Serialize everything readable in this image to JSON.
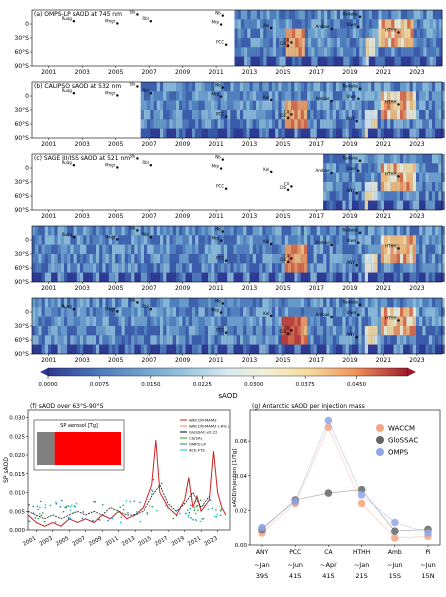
{
  "colors": {
    "colormap": [
      "#2d3a93",
      "#3b5cab",
      "#4f7dbd",
      "#6a9dcb",
      "#8cbbd9",
      "#b3d6e6",
      "#d8eaf1",
      "#f2f0d6",
      "#f8dca0",
      "#f7bd77",
      "#f1965c",
      "#e0673f",
      "#c73a30",
      "#a01a2d"
    ],
    "land": "#ffffff",
    "waccm": "#f4a582",
    "glossac": "#666666",
    "omps": "#8fa6e6",
    "panel_f_waccm": "#cc2222",
    "panel_f_sp_bar": "#ff0000",
    "panel_f_gray_bar": "#808080"
  },
  "chart_data": [
    {
      "id": "a",
      "type": "heatmap",
      "title": "(a) OMPS-LP sAOD at 745 nm",
      "x_ticks": [
        "2001",
        "2003",
        "2005",
        "2007",
        "2009",
        "2011",
        "2013",
        "2015",
        "2017",
        "2019",
        "2021",
        "2023"
      ],
      "y_ticks": [
        "0",
        "30°S",
        "60°S",
        "90°S"
      ],
      "data_start_year": 2012.1,
      "events": [
        "Ruag",
        "Mngr",
        "Slk",
        "Rbl",
        "Nb",
        "Mrp",
        "PCC",
        "Clb",
        "Kel",
        "Ambae",
        "Ulwn",
        "HTHH",
        "Raikoke",
        "CA"
      ]
    },
    {
      "id": "b",
      "type": "heatmap",
      "title": "(b) CALIPSO sAOD at 532 nm",
      "x_ticks": [
        "2001",
        "2003",
        "2005",
        "2007",
        "2009",
        "2011",
        "2013",
        "2015",
        "2017",
        "2019",
        "2021",
        "2023"
      ],
      "y_ticks": [
        "0",
        "30°S",
        "60°S",
        "90°S"
      ],
      "data_start_year": 2006.5,
      "events": [
        "Ruag",
        "Mngr",
        "Slk",
        "Rbl",
        "Nb",
        "Mrp",
        "PCC",
        "Clb",
        "Kel",
        "Ambae",
        "Ulwn",
        "HTHH",
        "Raikoke",
        "CA",
        "ANY"
      ]
    },
    {
      "id": "c",
      "type": "heatmap",
      "title": "(c) SAGE III/ISS sAOD at 521 nm",
      "x_ticks": [
        "2001",
        "2003",
        "2005",
        "2007",
        "2009",
        "2011",
        "2013",
        "2015",
        "2017",
        "2019",
        "2021",
        "2023"
      ],
      "y_ticks": [
        "0",
        "30°S",
        "60°S",
        "90°S"
      ],
      "data_start_year": 2017.4,
      "events": [
        "Ruag",
        "Mngr",
        "Slk",
        "Rbl",
        "Nb",
        "Mrp",
        "PCC",
        "Clb",
        "Kel",
        "Ambae",
        "Ulwn",
        "HTHH",
        "Raikoke",
        "CA",
        "ANY"
      ]
    },
    {
      "id": "d",
      "type": "heatmap",
      "title": "(d) GloSSAC sAOD at 525 nm",
      "x_ticks": [
        "2001",
        "2003",
        "2005",
        "2007",
        "2009",
        "2011",
        "2013",
        "2015",
        "2017",
        "2019",
        "2021",
        "2023"
      ],
      "y_ticks": [
        "0",
        "30°S",
        "60°S",
        "90°S"
      ],
      "data_start_year": 2000,
      "events": [
        "Ruag",
        "Mngr",
        "Slk",
        "Rbl",
        "Nb",
        "Mrp",
        "PCC",
        "Clb",
        "Kel",
        "Ambae",
        "Ulwn",
        "HTHH",
        "Raikoke",
        "CA",
        "ANY"
      ]
    },
    {
      "id": "e",
      "type": "heatmap",
      "title": "(e) WACCM simulated sAOD at 550 nm",
      "x_ticks": [
        "2001",
        "2003",
        "2005",
        "2007",
        "2009",
        "2011",
        "2013",
        "2015",
        "2017",
        "2019",
        "2021",
        "2023"
      ],
      "y_ticks": [
        "0",
        "30°S",
        "60°S",
        "90°S"
      ],
      "data_start_year": 2000,
      "events": [
        "Ruag",
        "Mngr",
        "Slk",
        "Rbl",
        "Nb",
        "Mrp",
        "PCC",
        "Clb",
        "Kel",
        "Ambae",
        "Ulwn",
        "HTHH",
        "Raikoke",
        "CA",
        "ANY"
      ]
    },
    {
      "id": "colorbar",
      "type": "heatmap",
      "xlabel": "sAOD",
      "ticks": [
        "0.0000",
        "0.0075",
        "0.0150",
        "0.0225",
        "0.0300",
        "0.0375",
        "0.0450"
      ],
      "range": [
        0,
        0.0525
      ]
    },
    {
      "id": "f",
      "type": "line",
      "title": "(f) sAOD over 63°S-90°S",
      "ylabel": "SP sAOD",
      "y_ticks": [
        "0.000",
        "0.005",
        "0.010",
        "0.015",
        "0.020",
        "0.025",
        "0.030"
      ],
      "x_ticks": [
        "2001",
        "2003",
        "2005",
        "2007",
        "2009",
        "2011",
        "2013",
        "2015",
        "2017",
        "2019",
        "2021",
        "2023"
      ],
      "ylim": [
        0,
        0.032
      ],
      "legend": [
        "WACCM-MAM3",
        "WACCM-MAM3 (-8% )",
        "GloSSAC-v2.22",
        "CS(SA)",
        "OMPS-LP",
        "ACE-FTS"
      ],
      "inset": {
        "title": "SP aerosol [Tg]",
        "value_left": 0.21,
        "value_right": 0.79
      },
      "series": [
        {
          "name": "WACCM-MAM3",
          "x": [
            2000,
            2001,
            2002,
            2003,
            2004,
            2005,
            2006,
            2007,
            2008,
            2009,
            2010,
            2011,
            2012,
            2013,
            2014,
            2015,
            2015.5,
            2016,
            2017,
            2018,
            2019,
            2019.5,
            2020,
            2020.5,
            2021,
            2022,
            2022.5,
            2023,
            2023.5,
            2024
          ],
          "values": [
            0.004,
            0.002,
            0.001,
            0.002,
            0.001,
            0.003,
            0.002,
            0.003,
            0.002,
            0.004,
            0.003,
            0.005,
            0.003,
            0.004,
            0.006,
            0.012,
            0.024,
            0.01,
            0.006,
            0.004,
            0.008,
            0.014,
            0.006,
            0.009,
            0.005,
            0.008,
            0.021,
            0.01,
            0.006,
            0.004
          ]
        },
        {
          "name": "GloSSAC-v2.22",
          "x": [
            2000,
            2001,
            2002,
            2003,
            2004,
            2005,
            2006,
            2007,
            2008,
            2009,
            2010,
            2011,
            2012,
            2013,
            2014,
            2015,
            2016,
            2017,
            2018,
            2019,
            2020,
            2021,
            2022
          ],
          "values": [
            0.005,
            0.004,
            0.003,
            0.004,
            0.003,
            0.004,
            0.005,
            0.004,
            0.005,
            0.004,
            0.006,
            0.005,
            0.004,
            0.004,
            0.005,
            0.009,
            0.012,
            0.007,
            0.005,
            0.007,
            0.01,
            0.006,
            0.009
          ]
        }
      ]
    },
    {
      "id": "g",
      "type": "scatter",
      "title": "(g) Antarctic sAOD per injection mass",
      "ylabel": "sAOD/injection [1/Tg]",
      "y_ticks": [
        "0.00",
        "0.02",
        "0.04",
        "0.06"
      ],
      "ylim": [
        0,
        0.078
      ],
      "categories": [
        "ANY",
        "PCC",
        "CA",
        "HTHH",
        "Amb",
        "Pi"
      ],
      "category_sub1": [
        "~Jan",
        "~Jun",
        "~Apr",
        "~Jan",
        "~Jun",
        "~Jun"
      ],
      "category_sub2": [
        "39S",
        "41S",
        "41S",
        "21S",
        "15S",
        "15N"
      ],
      "series": [
        {
          "name": "WACCM",
          "values": [
            0.007,
            0.024,
            0.068,
            0.024,
            0.004,
            0.005
          ]
        },
        {
          "name": "GloSSAC",
          "values": [
            0.009,
            0.026,
            0.03,
            0.032,
            0.008,
            0.009
          ]
        },
        {
          "name": "OMPS",
          "values": [
            0.01,
            0.025,
            0.072,
            0.029,
            0.013,
            0.007
          ]
        }
      ]
    }
  ]
}
